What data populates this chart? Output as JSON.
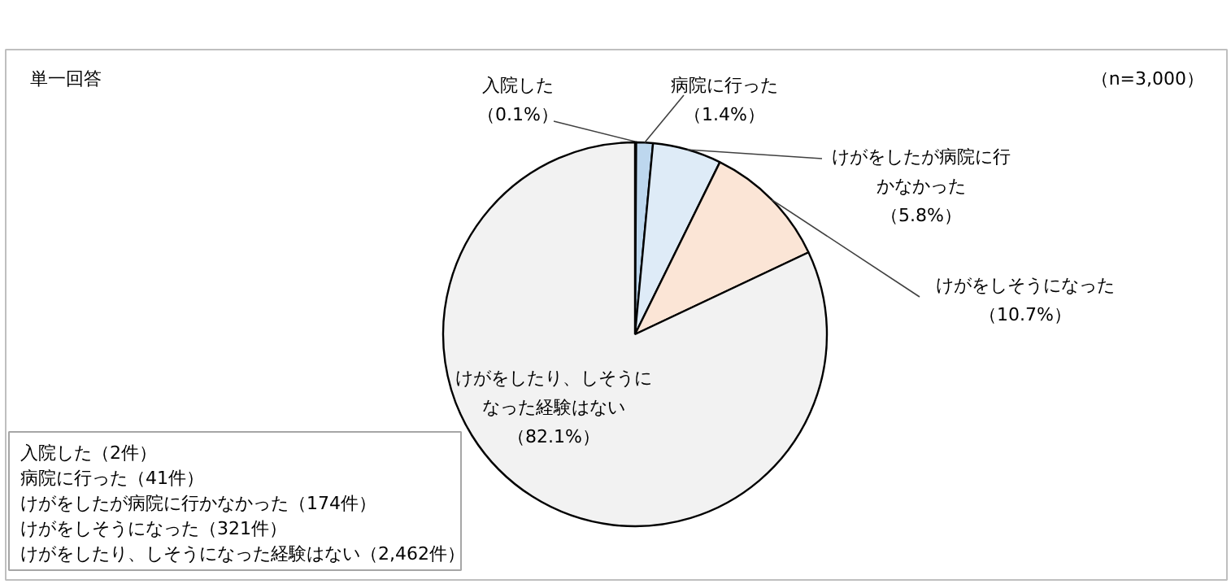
{
  "chart_data": {
    "type": "pie",
    "categories": [
      "入院した",
      "病院に行った",
      "けがをしたが病院に行かなかった",
      "けがをしそうになった",
      "けがをしたり、しそうになった経験はない"
    ],
    "values": [
      0.1,
      1.4,
      5.8,
      10.7,
      82.1
    ],
    "value_labels": [
      "（0.1%）",
      "（1.4%）",
      "（5.8%）",
      "（10.7%）",
      "（82.1%）"
    ],
    "colors": [
      "#2f5597",
      "#bdd7ee",
      "#deebf7",
      "#fbe5d6",
      "#f2f2f2"
    ],
    "annotations": [
      "単一回答",
      "（n=3,000）",
      "入院した（2件）",
      "病院に行った（41件）",
      "けがをしたが病院に行かなかった（174件）",
      "けがをしそうになった（321件）",
      "けがをしたり、しそうになった経験はない（2,462件）"
    ]
  }
}
